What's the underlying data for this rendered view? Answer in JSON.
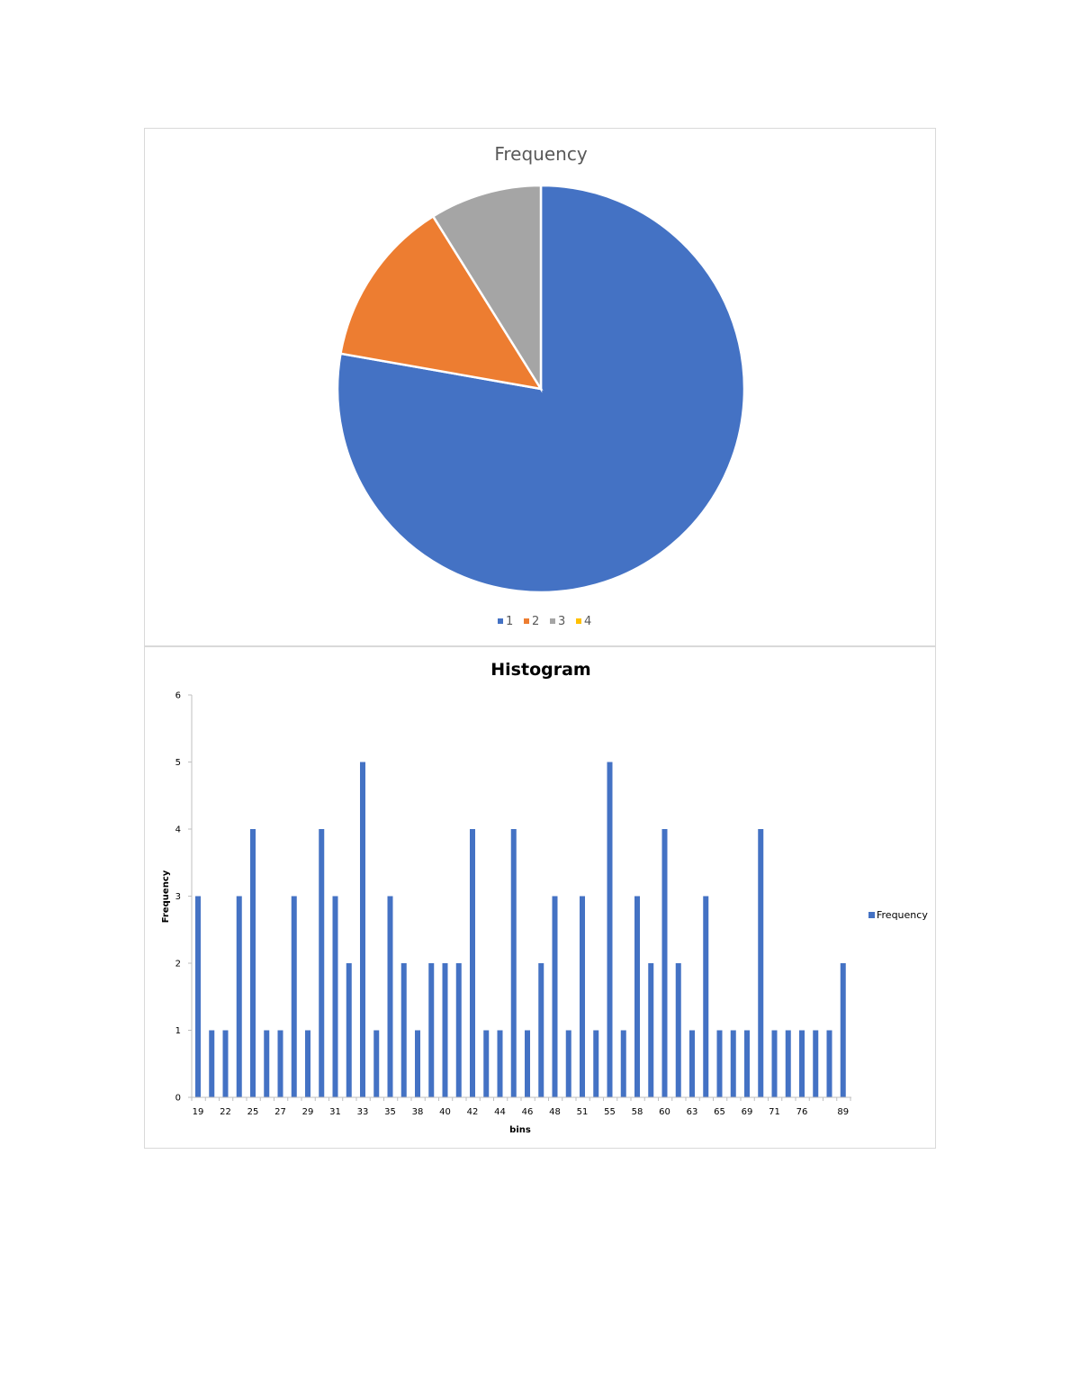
{
  "chart_data": [
    {
      "type": "pie",
      "title": "Frequency",
      "categories": [
        "1",
        "2",
        "3",
        "4"
      ],
      "values": [
        35,
        6,
        4,
        0
      ],
      "colors": [
        "#4472C4",
        "#ED7D31",
        "#A5A5A5",
        "#FFC000"
      ],
      "legend_position": "bottom"
    },
    {
      "type": "bar",
      "title": "Histogram",
      "xlabel": "bins",
      "ylabel": "Frequency",
      "ylim": [
        0,
        6
      ],
      "yticks": [
        "0",
        "1",
        "2",
        "3",
        "4",
        "5",
        "6"
      ],
      "categories": [
        "19",
        "21",
        "22",
        "24",
        "25",
        "26",
        "27",
        "28",
        "29",
        "30",
        "31",
        "32",
        "33",
        "34",
        "35",
        "37",
        "38",
        "39",
        "40",
        "41",
        "42",
        "43",
        "44",
        "45",
        "46",
        "47",
        "48",
        "49",
        "51",
        "53",
        "55",
        "57",
        "58",
        "59",
        "60",
        "62",
        "63",
        "64",
        "65",
        "66",
        "69",
        "70",
        "71",
        "72",
        "76",
        "77",
        "78",
        "89"
      ],
      "shown_tick_labels": [
        "19",
        "22",
        "25",
        "27",
        "29",
        "31",
        "33",
        "35",
        "38",
        "40",
        "42",
        "44",
        "46",
        "48",
        "51",
        "55",
        "58",
        "60",
        "63",
        "65",
        "69",
        "71",
        "76",
        "89"
      ],
      "series": [
        {
          "name": "Frequency",
          "color": "#4472C4",
          "values": [
            3,
            1,
            1,
            3,
            4,
            1,
            1,
            3,
            1,
            4,
            3,
            2,
            5,
            1,
            3,
            2,
            1,
            2,
            2,
            2,
            4,
            1,
            1,
            4,
            1,
            2,
            3,
            1,
            3,
            1,
            5,
            1,
            3,
            2,
            4,
            2,
            1,
            3,
            1,
            1,
            1,
            4,
            1,
            1,
            1,
            1,
            1,
            2
          ]
        }
      ],
      "grid": false,
      "legend_position": "right"
    }
  ]
}
